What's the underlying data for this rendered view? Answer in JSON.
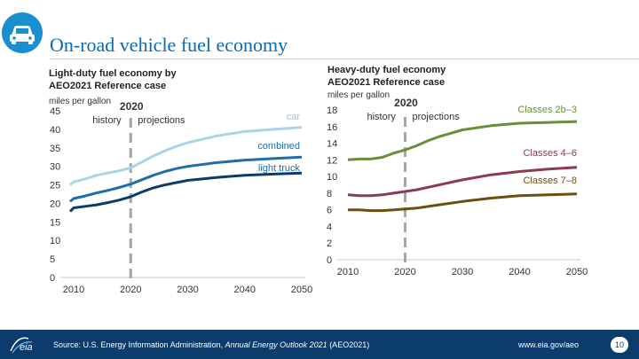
{
  "title": "On-road vehicle fuel economy",
  "icon": "car-icon",
  "colors": {
    "accent": "#1a8fd0",
    "title": "#0b6ab0",
    "footer": "#0b3c6b"
  },
  "left_panel": {
    "title_line1": "Light-duty fuel economy by",
    "title_line2": "AEO2021 Reference case",
    "unit": "miles per gallon"
  },
  "right_panel": {
    "title_line1": "Heavy-duty fuel economy",
    "title_line2": "AEO2021 Reference case",
    "unit": "miles per gallon"
  },
  "chart_data": [
    {
      "type": "line",
      "title": "Light-duty fuel economy by AEO2021 Reference case",
      "ylabel": "miles per gallon",
      "ylim": [
        0,
        45
      ],
      "xlim": [
        2010,
        2050
      ],
      "yticks": [
        "0",
        "5",
        "10",
        "15",
        "20",
        "25",
        "30",
        "35",
        "40",
        "45"
      ],
      "xticks": [
        "2010",
        "2020",
        "2030",
        "2040",
        "2050"
      ],
      "divider": {
        "year": 2020,
        "label": "2020",
        "left_label": "history",
        "right_label": "projections"
      },
      "series": [
        {
          "name": "car",
          "color": "#a8d4ea",
          "x": [
            2008,
            2010,
            2012,
            2014,
            2016,
            2018,
            2020,
            2022,
            2024,
            2026,
            2028,
            2030,
            2035,
            2040,
            2045,
            2050
          ],
          "values": [
            25.0,
            25.8,
            26.6,
            27.6,
            28.2,
            28.8,
            29.6,
            31.2,
            32.8,
            34.2,
            35.4,
            36.4,
            38.2,
            39.4,
            40.0,
            40.5
          ]
        },
        {
          "name": "combined",
          "color": "#1f6ea8",
          "x": [
            2008,
            2010,
            2012,
            2014,
            2016,
            2018,
            2020,
            2022,
            2024,
            2026,
            2028,
            2030,
            2035,
            2040,
            2045,
            2050
          ],
          "values": [
            20.5,
            21.3,
            22.0,
            22.8,
            23.5,
            24.3,
            25.2,
            26.4,
            27.6,
            28.6,
            29.4,
            30.0,
            31.0,
            31.7,
            32.1,
            32.5
          ]
        },
        {
          "name": "light truck",
          "color": "#0b3c6b",
          "x": [
            2008,
            2010,
            2012,
            2014,
            2016,
            2018,
            2020,
            2022,
            2024,
            2026,
            2028,
            2030,
            2035,
            2040,
            2045,
            2050
          ],
          "values": [
            17.8,
            18.8,
            19.2,
            19.6,
            20.2,
            20.9,
            21.8,
            23.1,
            24.2,
            25.0,
            25.6,
            26.2,
            27.0,
            27.6,
            27.9,
            28.2
          ]
        }
      ]
    },
    {
      "type": "line",
      "title": "Heavy-duty fuel economy AEO2021 Reference case",
      "ylabel": "miles per gallon",
      "ylim": [
        0,
        18
      ],
      "xlim": [
        2010,
        2050
      ],
      "yticks": [
        "0",
        "2",
        "4",
        "6",
        "8",
        "10",
        "12",
        "14",
        "16",
        "18"
      ],
      "xticks": [
        "2010",
        "2020",
        "2030",
        "2040",
        "2050"
      ],
      "divider": {
        "year": 2020,
        "label": "2020",
        "left_label": "history",
        "right_label": "projections"
      },
      "series": [
        {
          "name": "Classes 2b–3",
          "color": "#6b8e3a",
          "x": [
            2010,
            2012,
            2014,
            2016,
            2018,
            2020,
            2022,
            2024,
            2026,
            2028,
            2030,
            2035,
            2040,
            2045,
            2050
          ],
          "values": [
            12.0,
            12.1,
            12.1,
            12.3,
            12.8,
            13.2,
            13.7,
            14.3,
            14.8,
            15.2,
            15.6,
            16.1,
            16.4,
            16.5,
            16.6
          ]
        },
        {
          "name": "Classes 4–6",
          "color": "#8b3a50",
          "x": [
            2010,
            2012,
            2014,
            2016,
            2018,
            2020,
            2022,
            2024,
            2026,
            2028,
            2030,
            2035,
            2040,
            2045,
            2050
          ],
          "values": [
            7.8,
            7.7,
            7.7,
            7.8,
            8.0,
            8.2,
            8.4,
            8.7,
            9.0,
            9.3,
            9.6,
            10.2,
            10.6,
            10.9,
            11.1
          ]
        },
        {
          "name": "Classes 7–8",
          "color": "#6b4e10",
          "x": [
            2010,
            2012,
            2014,
            2016,
            2018,
            2020,
            2022,
            2024,
            2026,
            2028,
            2030,
            2035,
            2040,
            2045,
            2050
          ],
          "values": [
            6.0,
            6.0,
            5.9,
            5.9,
            6.0,
            6.1,
            6.2,
            6.4,
            6.6,
            6.8,
            7.0,
            7.4,
            7.7,
            7.8,
            7.9
          ]
        }
      ]
    }
  ],
  "footer": {
    "source_prefix": "Source: U.S. Energy Information Administration, ",
    "source_italic": "Annual Energy Outlook 2021",
    "source_suffix": " (AEO2021)",
    "logo_text": "eia",
    "website": "www.eia.gov/aeo",
    "page": "10"
  }
}
